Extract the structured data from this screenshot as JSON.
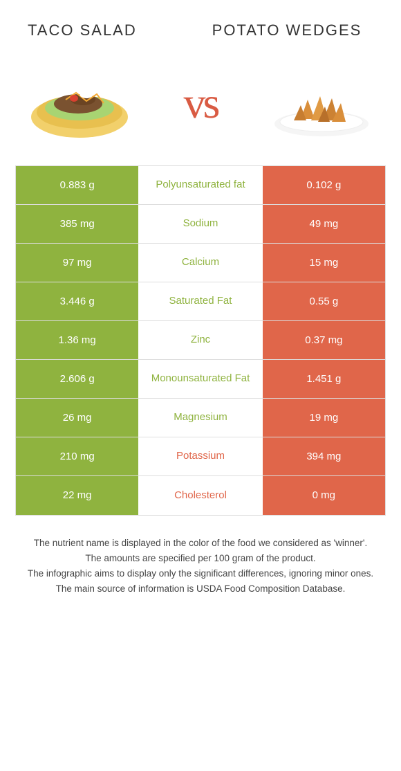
{
  "header": {
    "left_title": "Taco Salad",
    "right_title": "Potato Wedges"
  },
  "vs_label": "vs",
  "colors": {
    "left_bg": "#8fb33f",
    "right_bg": "#e0664a",
    "left_text": "#8fb33f",
    "right_text": "#e0664a"
  },
  "rows": [
    {
      "left": "0.883 g",
      "label": "Polyunsaturated fat",
      "right": "0.102 g",
      "winner": "left"
    },
    {
      "left": "385 mg",
      "label": "Sodium",
      "right": "49 mg",
      "winner": "left"
    },
    {
      "left": "97 mg",
      "label": "Calcium",
      "right": "15 mg",
      "winner": "left"
    },
    {
      "left": "3.446 g",
      "label": "Saturated Fat",
      "right": "0.55 g",
      "winner": "left"
    },
    {
      "left": "1.36 mg",
      "label": "Zinc",
      "right": "0.37 mg",
      "winner": "left"
    },
    {
      "left": "2.606 g",
      "label": "Monounsaturated Fat",
      "right": "1.451 g",
      "winner": "left"
    },
    {
      "left": "26 mg",
      "label": "Magnesium",
      "right": "19 mg",
      "winner": "left"
    },
    {
      "left": "210 mg",
      "label": "Potassium",
      "right": "394 mg",
      "winner": "right"
    },
    {
      "left": "22 mg",
      "label": "Cholesterol",
      "right": "0 mg",
      "winner": "right"
    }
  ],
  "footer": {
    "line1": "The nutrient name is displayed in the color of the food we considered as 'winner'.",
    "line2": "The amounts are specified per 100 gram of the product.",
    "line3": "The infographic aims to display only the significant differences, ignoring minor ones.",
    "line4": "The main source of information is USDA Food Composition Database."
  }
}
